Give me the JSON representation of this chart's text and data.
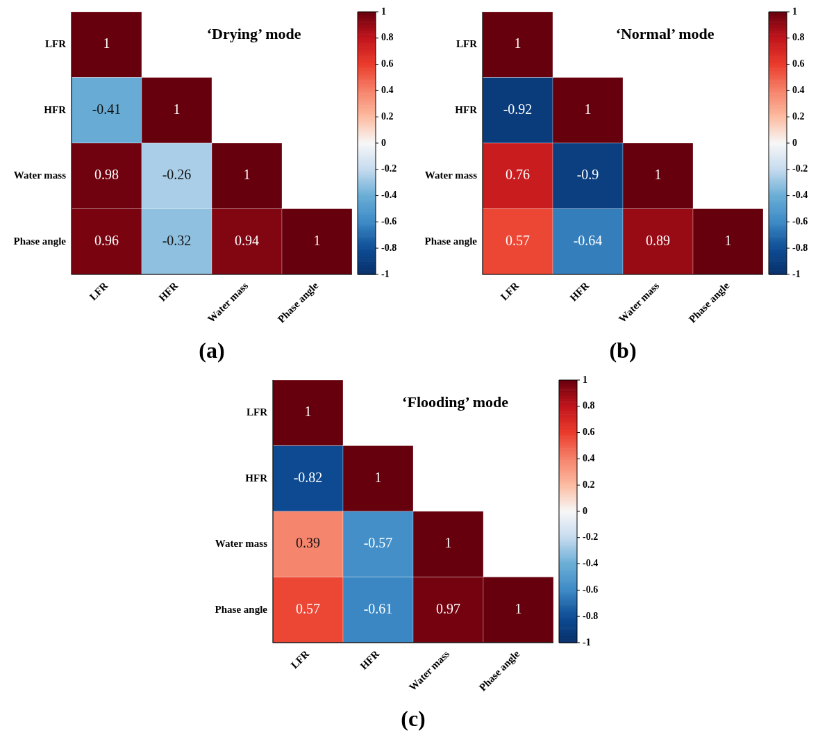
{
  "chart_data": [
    {
      "type": "heatmap",
      "title": "‘Drying’ mode",
      "categories": [
        "LFR",
        "HFR",
        "Water mass",
        "Phase angle"
      ],
      "y_categories": [
        "LFR",
        "HFR",
        "Water mass",
        "Phase angle"
      ],
      "cells": [
        [
          1,
          null,
          null,
          null
        ],
        [
          -0.41,
          1,
          null,
          null
        ],
        [
          0.98,
          -0.26,
          1,
          null
        ],
        [
          0.96,
          -0.32,
          0.94,
          1
        ]
      ],
      "clim": [
        -1,
        1
      ],
      "cticks": [
        1,
        0.8,
        0.6,
        0.4,
        0.2,
        0,
        -0.2,
        -0.4,
        -0.6,
        -0.8,
        -1
      ],
      "data_labels": true,
      "annotations": [
        "(a)"
      ]
    },
    {
      "type": "heatmap",
      "title": "‘Normal’ mode",
      "categories": [
        "LFR",
        "HFR",
        "Water mass",
        "Phase angle"
      ],
      "y_categories": [
        "LFR",
        "HFR",
        "Water mass",
        "Phase angle"
      ],
      "cells": [
        [
          1,
          null,
          null,
          null
        ],
        [
          -0.92,
          1,
          null,
          null
        ],
        [
          0.76,
          -0.9,
          1,
          null
        ],
        [
          0.57,
          -0.64,
          0.89,
          1
        ]
      ],
      "clim": [
        -1,
        1
      ],
      "cticks": [
        1,
        0.8,
        0.6,
        0.4,
        0.2,
        0,
        -0.2,
        -0.4,
        -0.6,
        -0.8,
        -1
      ],
      "data_labels": true,
      "annotations": [
        "(b)"
      ]
    },
    {
      "type": "heatmap",
      "title": "‘Flooding’ mode",
      "categories": [
        "LFR",
        "HFR",
        "Water mass",
        "Phase angle"
      ],
      "y_categories": [
        "LFR",
        "HFR",
        "Water mass",
        "Phase angle"
      ],
      "cells": [
        [
          1,
          null,
          null,
          null
        ],
        [
          -0.82,
          1,
          null,
          null
        ],
        [
          0.39,
          -0.57,
          1,
          null
        ],
        [
          0.57,
          -0.61,
          0.97,
          1
        ]
      ],
      "clim": [
        -1,
        1
      ],
      "cticks": [
        1,
        0.8,
        0.6,
        0.4,
        0.2,
        0,
        -0.2,
        -0.4,
        -0.6,
        -0.8,
        -1
      ],
      "data_labels": true,
      "annotations": [
        "(c)"
      ]
    }
  ]
}
